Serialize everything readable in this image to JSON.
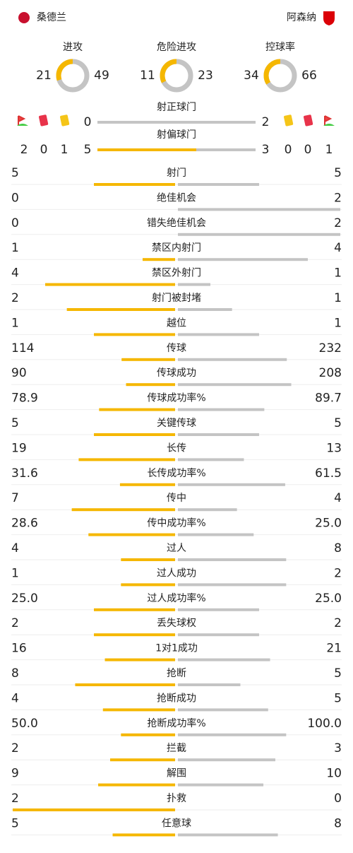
{
  "teams": {
    "home": "桑德兰",
    "away": "阿森纳"
  },
  "donuts": [
    {
      "label": "进攻",
      "home": 21,
      "away": 49
    },
    {
      "label": "危险进攻",
      "home": 11,
      "away": 23
    },
    {
      "label": "控球率",
      "home": 34,
      "away": 66
    }
  ],
  "shots": {
    "on_target": {
      "label": "射正球门",
      "home": 0,
      "away": 2
    },
    "off_target": {
      "label": "射偏球门",
      "home": 5,
      "away": 3
    }
  },
  "cards": {
    "home": {
      "corners": 2,
      "red": 0,
      "yellow": 1
    },
    "away": {
      "yellow": 0,
      "red": 0,
      "corners": 1
    }
  },
  "stats": [
    {
      "label": "射门",
      "home": 5,
      "away": 5
    },
    {
      "label": "绝佳机会",
      "home": 0,
      "away": 2
    },
    {
      "label": "错失绝佳机会",
      "home": 0,
      "away": 2
    },
    {
      "label": "禁区内射门",
      "home": 1,
      "away": 4
    },
    {
      "label": "禁区外射门",
      "home": 4,
      "away": 1
    },
    {
      "label": "射门被封堵",
      "home": 2,
      "away": 1
    },
    {
      "label": "越位",
      "home": 1,
      "away": 1
    },
    {
      "label": "传球",
      "home": 114,
      "away": 232
    },
    {
      "label": "传球成功",
      "home": 90,
      "away": 208
    },
    {
      "label": "传球成功率%",
      "home": 78.9,
      "away": 89.7
    },
    {
      "label": "关键传球",
      "home": 5,
      "away": 5
    },
    {
      "label": "长传",
      "home": 19,
      "away": 13
    },
    {
      "label": "长传成功率%",
      "home": 31.6,
      "away": 61.5
    },
    {
      "label": "传中",
      "home": 7,
      "away": 4
    },
    {
      "label": "传中成功率%",
      "home": 28.6,
      "away": {
        "value": 25,
        "label": "25.0"
      }
    },
    {
      "label": "过人",
      "home": 4,
      "away": 8
    },
    {
      "label": "过人成功",
      "home": 1,
      "away": 2
    },
    {
      "label": "过人成功率%",
      "home": {
        "value": 25,
        "label": "25.0"
      },
      "away": {
        "value": 25,
        "label": "25.0"
      }
    },
    {
      "label": "丢失球权",
      "home": 2,
      "away": 2
    },
    {
      "label": "1对1成功",
      "home": 16,
      "away": 21
    },
    {
      "label": "抢断",
      "home": 8,
      "away": 5
    },
    {
      "label": "抢断成功",
      "home": 4,
      "away": 5
    },
    {
      "label": "抢断成功率%",
      "home": {
        "value": 50,
        "label": "50.0"
      },
      "away": {
        "value": 100,
        "label": "100.0"
      }
    },
    {
      "label": "拦截",
      "home": 2,
      "away": 3
    },
    {
      "label": "解围",
      "home": 9,
      "away": 10
    },
    {
      "label": "扑救",
      "home": 2,
      "away": 0
    },
    {
      "label": "任意球",
      "home": 5,
      "away": 8
    }
  ]
}
